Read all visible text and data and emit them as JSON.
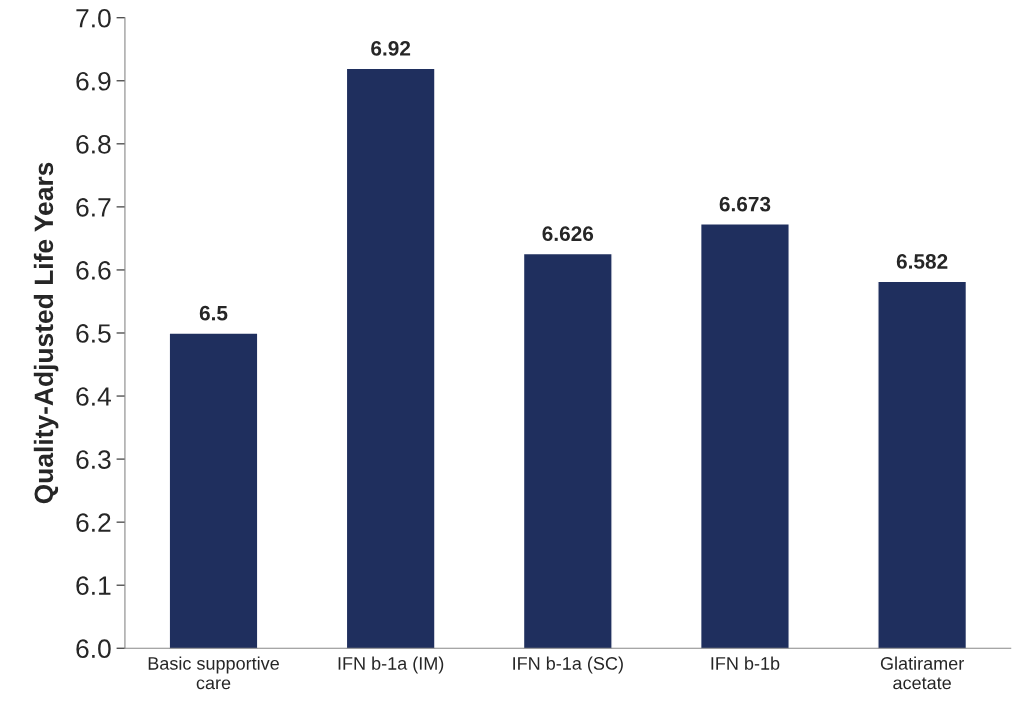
{
  "chart_data": {
    "type": "bar",
    "ylabel": "Quality-Adjusted Life Years",
    "categories": [
      "Basic supportive\ncare",
      "IFN b-1a (IM)",
      "IFN b-1a (SC)",
      "IFN b-1b",
      "Glatiramer\nacetate"
    ],
    "values": [
      6.5,
      6.92,
      6.626,
      6.673,
      6.582
    ],
    "color": "#1f2f5e",
    "ylim": [
      6.0,
      7.0
    ],
    "yticks": [
      {
        "value": 6.0,
        "label": "6.0"
      },
      6.1,
      6.2,
      6.3,
      6.4,
      6.5,
      6.6,
      6.7,
      6.8,
      6.9,
      {
        "value": 7.0,
        "label": "7.0"
      }
    ],
    "data_labels": true,
    "grid": false,
    "legend": false
  }
}
